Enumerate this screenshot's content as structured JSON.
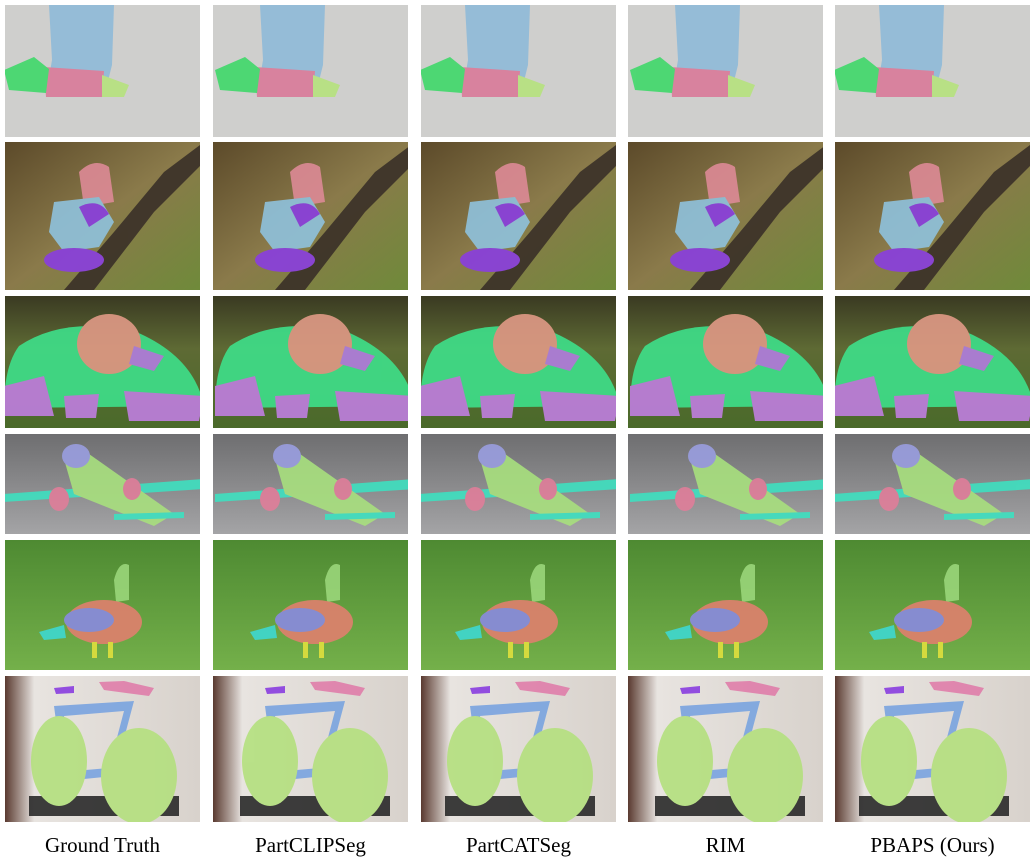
{
  "columns": [
    "Ground Truth",
    "PartCLIPSeg",
    "PartCATSeg",
    "RIM",
    "PBAPS (Ours)"
  ]
}
